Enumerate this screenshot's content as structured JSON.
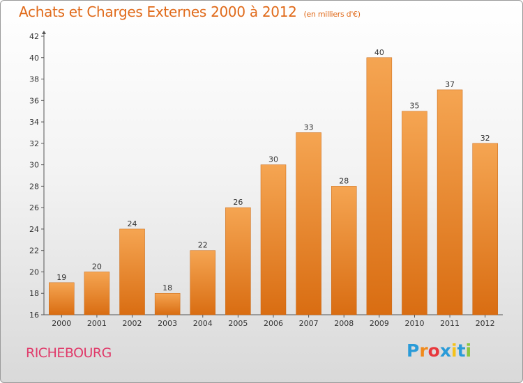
{
  "header": {
    "title": "Achats et Charges Externes 2000 à 2012",
    "unit": "(en milliers d'€)"
  },
  "footer": {
    "commune": "RICHEBOURG",
    "logo_letters": [
      "P",
      "r",
      "o",
      "x",
      "i",
      "t",
      "i"
    ],
    "logo_colors": [
      "#2a9bd8",
      "#f08a1c",
      "#e8383d",
      "#2a9bd8",
      "#f4c21a",
      "#2a9bd8",
      "#8cc63f"
    ]
  },
  "colors": {
    "bar": "#f0923a",
    "title": "#e06a1a",
    "commune": "#e03a6a"
  },
  "chart_data": {
    "type": "bar",
    "categories": [
      "2000",
      "2001",
      "2002",
      "2003",
      "2004",
      "2005",
      "2006",
      "2007",
      "2008",
      "2009",
      "2010",
      "2011",
      "2012"
    ],
    "values": [
      19,
      20,
      24,
      18,
      22,
      26,
      30,
      33,
      28,
      40,
      35,
      37,
      32
    ],
    "title": "Achats et Charges Externes 2000 à 2012",
    "xlabel": "",
    "ylabel": "",
    "ylim": [
      16,
      42
    ],
    "yticks": [
      16,
      18,
      20,
      22,
      24,
      26,
      28,
      30,
      32,
      34,
      36,
      38,
      40,
      42
    ],
    "grid": false,
    "legend": "none"
  }
}
